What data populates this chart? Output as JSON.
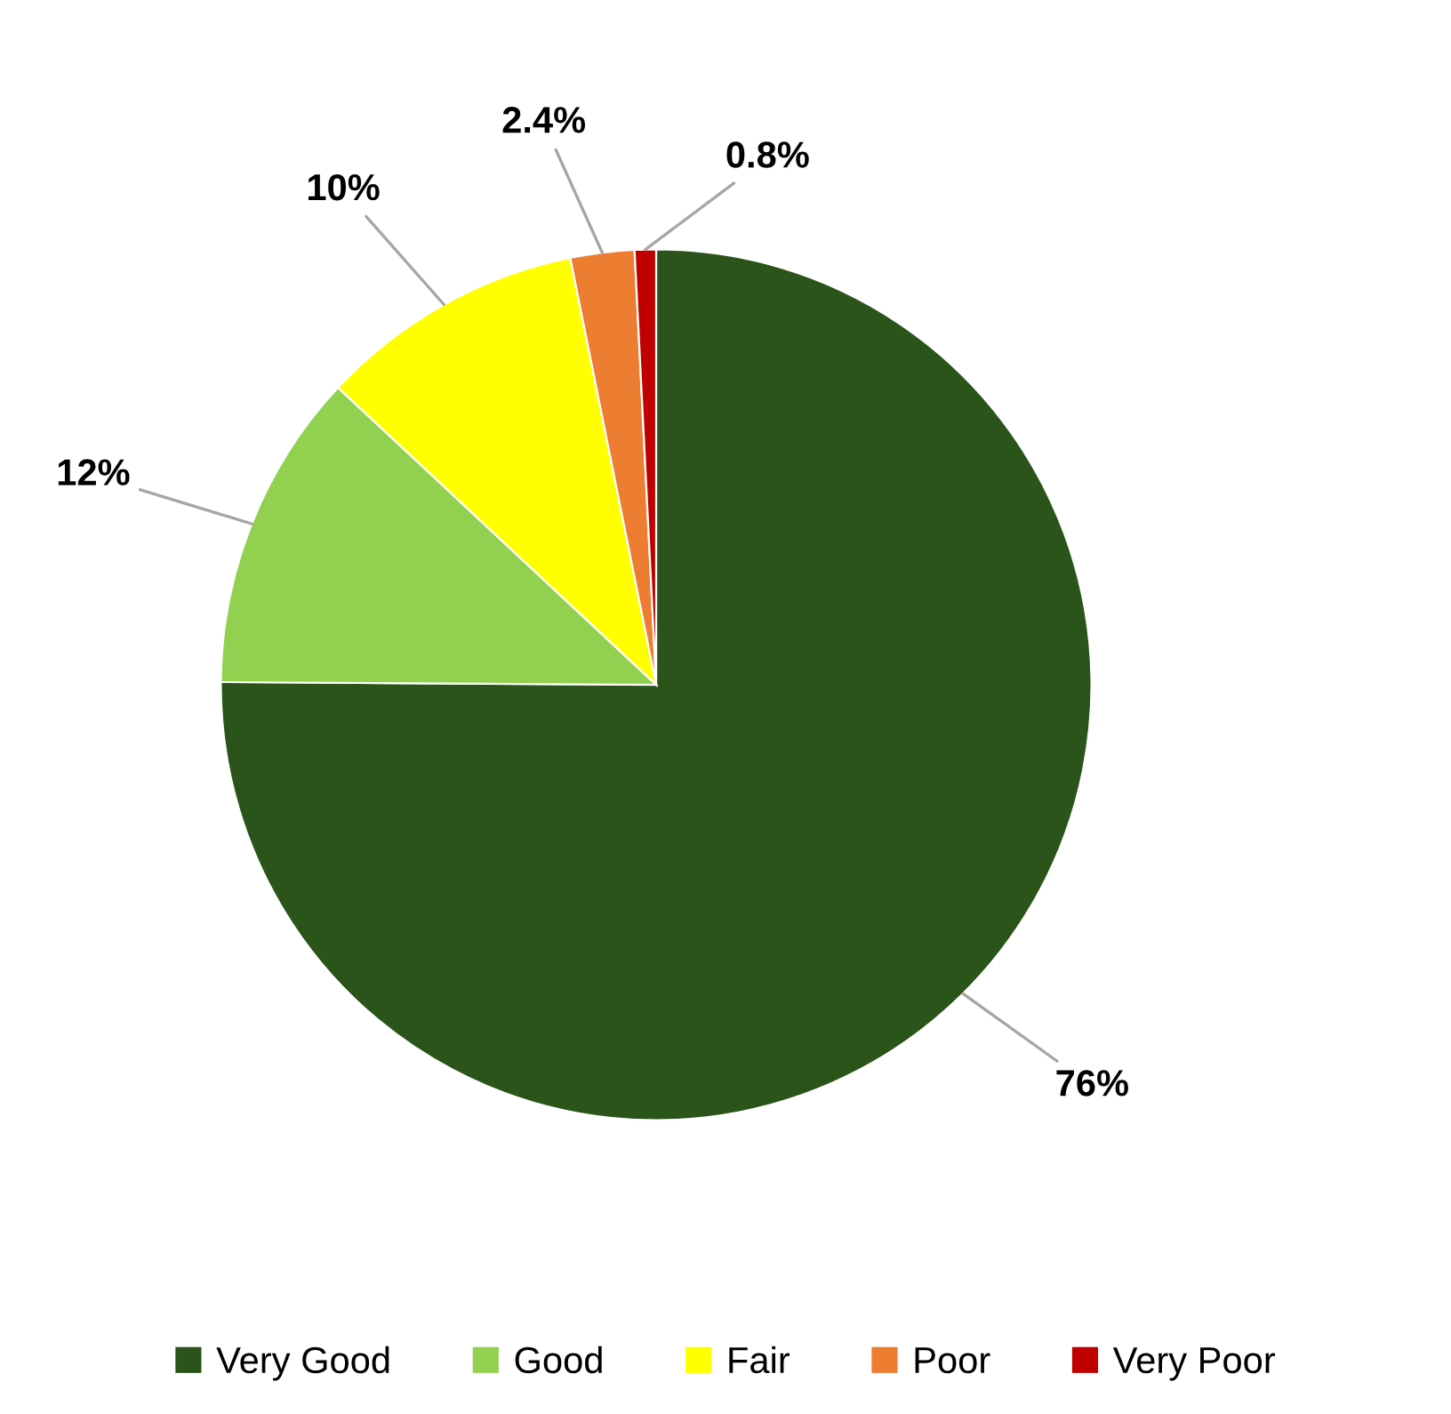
{
  "chart_data": {
    "type": "pie",
    "categories": [
      "Very Good",
      "Good",
      "Fair",
      "Poor",
      "Very Poor"
    ],
    "values": [
      76,
      12,
      10,
      2.4,
      0.8
    ],
    "value_labels": [
      "76%",
      "12%",
      "10%",
      "2.4%",
      "0.8%"
    ],
    "colors": [
      "#2a5419",
      "#92d050",
      "#ffff00",
      "#ed7d31",
      "#c00000"
    ],
    "legend": "bottom"
  }
}
